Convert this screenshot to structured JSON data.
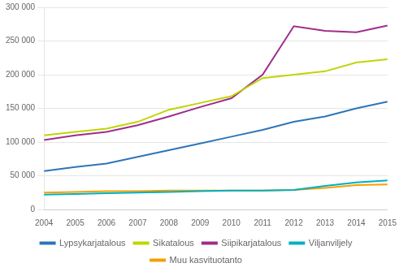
{
  "chart_data": {
    "type": "line",
    "x": [
      2004,
      2005,
      2006,
      2007,
      2008,
      2009,
      2010,
      2011,
      2012,
      2013,
      2014,
      2015
    ],
    "series": [
      {
        "name": "Lypsykarjatalous",
        "color": "#2e75b6",
        "values": [
          57000,
          63000,
          68000,
          78000,
          88000,
          98000,
          108000,
          118000,
          130000,
          138000,
          150000,
          160000
        ]
      },
      {
        "name": "Sikatalous",
        "color": "#bed600",
        "values": [
          110000,
          115000,
          120000,
          130000,
          148000,
          158000,
          168000,
          195000,
          200000,
          205000,
          218000,
          223000
        ]
      },
      {
        "name": "Siipikarjatalous",
        "color": "#9e2d8c",
        "values": [
          103000,
          110000,
          115000,
          125000,
          138000,
          152000,
          165000,
          200000,
          272000,
          265000,
          263000,
          273000
        ]
      },
      {
        "name": "Viljanviljely",
        "color": "#00b0c0",
        "values": [
          22000,
          23000,
          24000,
          25000,
          26000,
          27000,
          28000,
          28000,
          29000,
          35000,
          40000,
          43000
        ]
      },
      {
        "name": "Muu kasvituotanto",
        "color": "#f5a000",
        "values": [
          25000,
          26000,
          27000,
          27000,
          28000,
          28000,
          28000,
          28000,
          29000,
          32000,
          36000,
          37000
        ]
      }
    ],
    "xlim": [
      2004,
      2015
    ],
    "xticks": [
      2004,
      2005,
      2006,
      2007,
      2008,
      2009,
      2010,
      2011,
      2012,
      2013,
      2014,
      2015
    ],
    "ylim": [
      0,
      300000
    ],
    "yticks": [
      0,
      {
        "value": 50000,
        "label": "50 000"
      },
      {
        "value": 100000,
        "label": "100 000"
      },
      {
        "value": 150000,
        "label": "150 000"
      },
      {
        "value": 200000,
        "label": "200 000"
      },
      {
        "value": 250000,
        "label": "250 000"
      },
      {
        "value": 300000,
        "label": "300 000"
      }
    ],
    "grid": "y",
    "legend": "bottom"
  }
}
